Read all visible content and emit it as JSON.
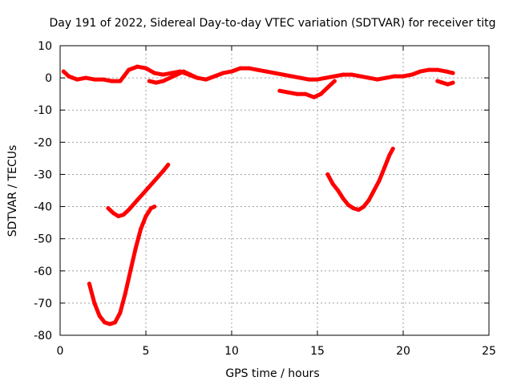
{
  "chart_data": {
    "type": "scatter",
    "title": "Day 191 of 2022, Sidereal Day-to-day VTEC variation (SDTVAR) for receiver titg",
    "xlabel": "GPS time / hours",
    "ylabel": "SDTVAR / TECUs",
    "xlim": [
      0,
      25
    ],
    "ylim": [
      -80,
      10
    ],
    "xticks": [
      "0",
      "5",
      "10",
      "15",
      "20",
      "25"
    ],
    "yticks": [
      "10",
      "0",
      "-10",
      "-20",
      "-30",
      "-40",
      "-50",
      "-60",
      "-70",
      "-80"
    ],
    "grid": true,
    "series_color": "#ff0000",
    "series": [
      {
        "x": [
          0.2,
          0.5,
          1.0,
          1.5,
          2.0,
          2.5,
          3.0,
          3.5,
          4.0,
          4.5,
          5.0,
          5.5,
          6.0,
          6.5,
          7.0,
          7.5,
          8.0,
          8.5,
          9.0,
          9.5,
          10.0,
          10.5,
          11.0,
          11.5,
          12.0,
          12.5,
          13.0,
          13.5,
          14.0,
          14.5,
          15.0,
          15.5,
          16.0,
          16.5,
          17.0,
          17.5,
          18.0,
          18.5,
          19.0,
          19.5,
          20.0,
          20.5,
          21.0,
          21.5,
          22.0,
          22.5,
          22.9
        ],
        "y": [
          2,
          0.5,
          -0.5,
          0,
          -0.5,
          -0.5,
          -1,
          -1,
          2.5,
          3.5,
          3,
          1.5,
          1,
          1.5,
          2,
          1,
          0,
          -0.5,
          0.5,
          1.5,
          2,
          3,
          3,
          2.5,
          2,
          1.5,
          1,
          0.5,
          0,
          -0.5,
          -0.5,
          0,
          0.5,
          1,
          1,
          0.5,
          0,
          -0.5,
          0,
          0.5,
          0.5,
          1,
          2,
          2.5,
          2.5,
          2,
          1.5
        ]
      },
      {
        "x": [
          5.2,
          5.6,
          6.0,
          6.4,
          6.8,
          7.2,
          7.6,
          8.0
        ],
        "y": [
          -1,
          -1.5,
          -1,
          0,
          1,
          2,
          1,
          0
        ]
      },
      {
        "x": [
          12.8,
          13.3,
          13.8,
          14.3,
          14.8,
          15.2,
          15.6,
          16.0
        ],
        "y": [
          -4,
          -4.5,
          -5,
          -5,
          -6,
          -5,
          -3,
          -1
        ]
      },
      {
        "x": [
          22.0,
          22.3,
          22.6,
          22.9
        ],
        "y": [
          -1,
          -1.5,
          -2,
          -1.5
        ]
      },
      {
        "x": [
          2.8,
          3.1,
          3.4,
          3.7,
          4.0,
          4.5,
          5.0,
          5.5,
          6.0,
          6.3
        ],
        "y": [
          -40.5,
          -42,
          -43,
          -42.5,
          -41,
          -38,
          -35,
          -32,
          -29,
          -27
        ]
      },
      {
        "x": [
          1.7,
          2.0,
          2.3,
          2.6,
          2.9,
          3.2,
          3.5,
          3.8,
          4.1,
          4.4,
          4.7,
          5.0,
          5.3,
          5.5
        ],
        "y": [
          -64,
          -70,
          -74,
          -76,
          -76.5,
          -76,
          -73,
          -67,
          -60,
          -53,
          -47,
          -43,
          -40.5,
          -40
        ]
      },
      {
        "x": [
          15.6,
          15.9,
          16.2,
          16.5,
          16.8,
          17.1,
          17.4,
          17.7,
          18.0,
          18.3,
          18.6,
          18.9,
          19.2,
          19.4
        ],
        "y": [
          -30,
          -33,
          -35,
          -37.5,
          -39.5,
          -40.5,
          -41,
          -40,
          -38,
          -35,
          -32,
          -28,
          -24,
          -22
        ]
      }
    ]
  }
}
